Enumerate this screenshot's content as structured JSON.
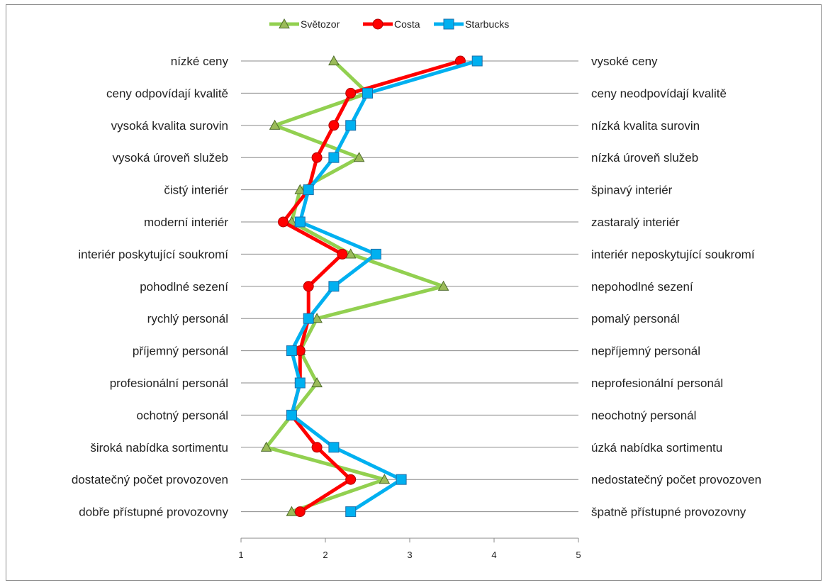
{
  "chart_data": {
    "type": "line",
    "orientation": "horizontal",
    "x_axis": {
      "min": 1,
      "max": 5,
      "ticks": [
        "1",
        "2",
        "3",
        "4",
        "5"
      ]
    },
    "grid": "horizontal-lines-per-category",
    "legend": "top",
    "categories_left": [
      "nízké ceny",
      "ceny odpovídají kvalitě",
      "vysoká kvalita surovin",
      "vysoká úroveň služeb",
      "čistý interiér",
      "moderní interiér",
      "interiér poskytující soukromí",
      "pohodlné sezení",
      "rychlý personál",
      "příjemný personál",
      "profesionální personál",
      "ochotný personál",
      "široká nabídka sortimentu",
      "dostatečný počet provozoven",
      "dobře přístupné provozovny"
    ],
    "categories_right": [
      "vysoké ceny",
      "ceny neodpovídají kvalitě",
      "nízká kvalita surovin",
      "nízká úroveň služeb",
      "špinavý interiér",
      "zastaralý interiér",
      "interiér neposkytující soukromí",
      "nepohodlné sezení",
      "pomalý personál",
      "nepříjemný personál",
      "neprofesionální personál",
      "neochotný personál",
      "úzká nabídka sortimentu",
      "nedostatečný počet provozoven",
      "špatně přístupné provozovny"
    ],
    "series": [
      {
        "name": "Světozor",
        "color": "#92D050",
        "marker": "triangle",
        "values": [
          2.1,
          2.5,
          1.4,
          2.4,
          1.7,
          1.6,
          2.3,
          3.4,
          1.9,
          1.7,
          1.9,
          1.6,
          1.3,
          2.7,
          1.6
        ]
      },
      {
        "name": "Costa",
        "color": "#FF0000",
        "marker": "circle",
        "values": [
          3.6,
          2.3,
          2.1,
          1.9,
          1.8,
          1.5,
          2.2,
          1.8,
          1.8,
          1.7,
          1.7,
          1.6,
          1.9,
          2.3,
          1.7
        ]
      },
      {
        "name": "Starbucks",
        "color": "#00B0F0",
        "marker": "square",
        "values": [
          3.8,
          2.5,
          2.3,
          2.1,
          1.8,
          1.7,
          2.6,
          2.1,
          1.8,
          1.6,
          1.7,
          1.6,
          2.1,
          2.9,
          2.3
        ]
      }
    ]
  }
}
